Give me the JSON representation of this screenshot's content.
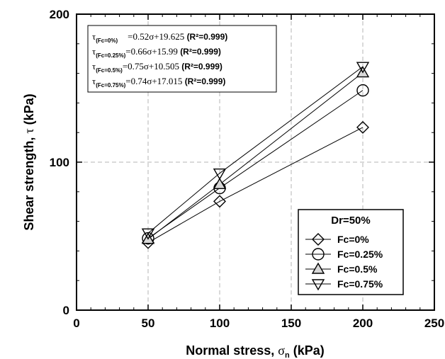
{
  "chart_data": {
    "type": "scatter",
    "xlabel_main": "Normal stress, ",
    "xlabel_symbol": "σ",
    "xlabel_sub": "n",
    "xlabel_unit": " (kPa)",
    "ylabel_main": "Shear strength, ",
    "ylabel_symbol": "τ",
    "ylabel_unit": " (kPa)",
    "xlim": [
      0,
      250
    ],
    "ylim": [
      0,
      200
    ],
    "xticks": [
      0,
      50,
      100,
      150,
      200,
      250
    ],
    "yticks": [
      0,
      100,
      200
    ],
    "grid": true,
    "x": [
      50,
      100,
      200
    ],
    "series": [
      {
        "name": "Fc=0%",
        "marker": "diamond",
        "values": [
          45.6,
          73.5,
          123.5
        ],
        "fit": {
          "slope": 0.52,
          "intercept": 19.625
        },
        "eq_sub": "(Fc=0%)",
        "eq_text": "=0.52σ+19.625 ",
        "eq_r2": "(R²=0.999)"
      },
      {
        "name": "Fc=0.25%",
        "marker": "circle",
        "values": [
          48.5,
          82.5,
          148.5
        ],
        "fit": {
          "slope": 0.66,
          "intercept": 15.99
        },
        "eq_sub": "(Fc=0.25%)",
        "eq_text": "=0.66σ+15.99 ",
        "eq_r2": "(R²=0.999)"
      },
      {
        "name": "Fc=0.5%",
        "marker": "triangle-up",
        "values": [
          48.0,
          85.0,
          160.5
        ],
        "fit": {
          "slope": 0.75,
          "intercept": 10.505
        },
        "eq_sub": "(Fc=0.5%)",
        "eq_text": "=0.75σ+10.505 ",
        "eq_r2": "(R²=0.999)"
      },
      {
        "name": "Fc=0.75%",
        "marker": "triangle-down",
        "values": [
          52.0,
          92.5,
          164.5
        ],
        "fit": {
          "slope": 0.74,
          "intercept": 17.015
        },
        "eq_sub": "(Fc=0.75%)",
        "eq_text": "=0.74σ+17.015 ",
        "eq_r2": "(R²=0.999)"
      }
    ],
    "legend_title": "Dr=50%",
    "legend_position": "bottom-right",
    "eq_symbol": "τ"
  }
}
